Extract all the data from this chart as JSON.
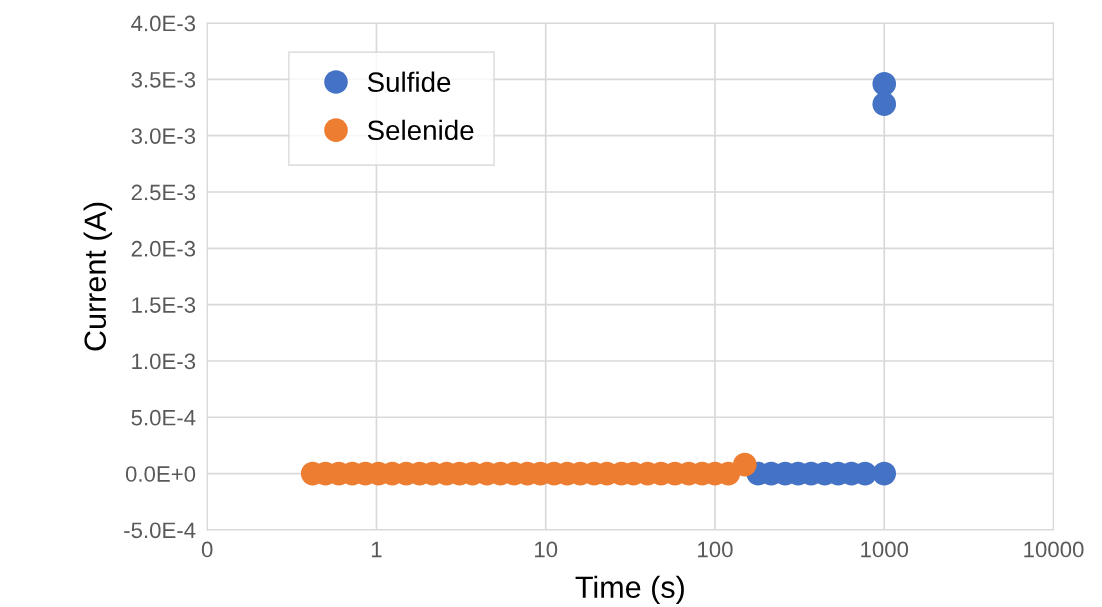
{
  "chart_data": {
    "type": "scatter",
    "xlabel": "Time (s)",
    "ylabel": "Current (A)",
    "log": "x",
    "xlim": [
      0.1,
      10000
    ],
    "xticks": [
      {
        "value": 0.1,
        "label": "0"
      },
      1,
      10,
      100,
      1000,
      10000
    ],
    "ylim": [
      -0.0005,
      0.004
    ],
    "yticks": [
      {
        "value": -0.0005,
        "label": "-5.0E-4"
      },
      {
        "value": 0,
        "label": "0.0E+0"
      },
      {
        "value": 0.0005,
        "label": "5.0E-4"
      },
      {
        "value": 0.001,
        "label": "1.0E-3"
      },
      {
        "value": 0.0015,
        "label": "1.5E-3"
      },
      {
        "value": 0.002,
        "label": "2.0E-3"
      },
      {
        "value": 0.0025,
        "label": "2.5E-3"
      },
      {
        "value": 0.003,
        "label": "3.0E-3"
      },
      {
        "value": 0.0035,
        "label": "3.5E-3"
      },
      {
        "value": 0.004,
        "label": "4.0E-3"
      }
    ],
    "grid": true,
    "legend": "top left",
    "marker": "circle",
    "series": [
      {
        "name": "Sulfide",
        "color": "#4472c4",
        "x": [
          180,
          215,
          260,
          310,
          370,
          445,
          535,
          640,
          770,
          1000,
          1000,
          1000
        ],
        "values": [
          0,
          0,
          0,
          0,
          0,
          0,
          0,
          0,
          0,
          0,
          0.00328,
          0.00346
        ]
      },
      {
        "name": "Selenide",
        "color": "#ed7d31",
        "x": [
          0.42,
          0.5,
          0.6,
          0.72,
          0.86,
          1.03,
          1.24,
          1.5,
          1.8,
          2.15,
          2.6,
          3.1,
          3.7,
          4.5,
          5.4,
          6.5,
          7.8,
          9.3,
          11.2,
          13.4,
          16,
          19.3,
          23,
          28,
          33,
          40,
          48,
          58,
          70,
          84,
          100,
          120,
          150
        ],
        "values": [
          0,
          0,
          0,
          0,
          0,
          0,
          0,
          0,
          0,
          0,
          0,
          0,
          0,
          0,
          0,
          0,
          0,
          0,
          0,
          0,
          0,
          0,
          0,
          0,
          0,
          0,
          0,
          0,
          0,
          0,
          0,
          0,
          8e-05
        ]
      }
    ]
  }
}
